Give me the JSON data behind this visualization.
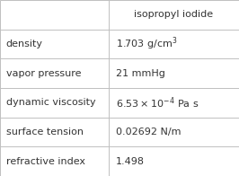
{
  "col_header": "isopropyl iodide",
  "rows": [
    {
      "label": "density",
      "value": "1.703 g/cm$^3$"
    },
    {
      "label": "vapor pressure",
      "value": "21 mmHg"
    },
    {
      "label": "dynamic viscosity",
      "value": "$6.53\\times10^{-4}$ Pa s"
    },
    {
      "label": "surface tension",
      "value": "0.02692 N/m"
    },
    {
      "label": "refractive index",
      "value": "1.498"
    }
  ],
  "bg_color": "#ffffff",
  "grid_color": "#c0c0c0",
  "text_color": "#333333",
  "cell_fontsize": 8.0,
  "col_split": 0.455,
  "fig_width": 2.66,
  "fig_height": 1.96,
  "dpi": 100
}
